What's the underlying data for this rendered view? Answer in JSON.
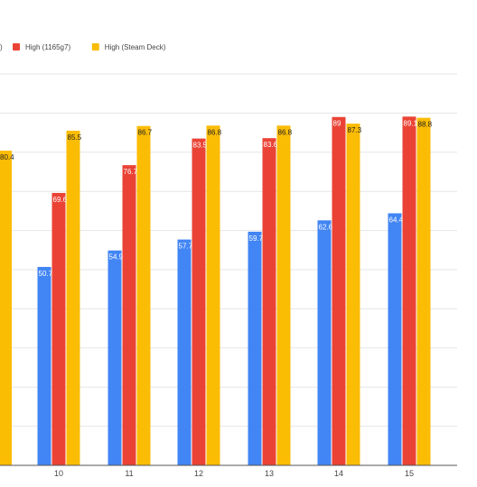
{
  "chart_data": {
    "type": "bar",
    "categories": [
      "10",
      "11",
      "12",
      "13",
      "14",
      "15"
    ],
    "series": [
      {
        "name": "",
        "values": [
          50.7,
          54.9,
          57.7,
          59.7,
          62.6,
          64.4
        ],
        "color": "#4285F4",
        "label_color": "#ffffff"
      },
      {
        "name": "High (1165g7)",
        "values": [
          69.6,
          76.7,
          83.5,
          83.6,
          89,
          89.1
        ],
        "color": "#EA4335",
        "label_color": "#ffffff"
      },
      {
        "name": "High (Steam Deck)",
        "values": [
          85.5,
          86.7,
          86.8,
          86.8,
          87.3,
          88.8
        ],
        "color": "#FBBC04",
        "label_color": "#202124"
      }
    ],
    "partial_category": {
      "values": [
        null,
        null,
        80.4
      ]
    },
    "legend": {
      "partial_label": ")",
      "position": "top-left"
    },
    "ylim": [
      0,
      100
    ],
    "grid": true
  }
}
